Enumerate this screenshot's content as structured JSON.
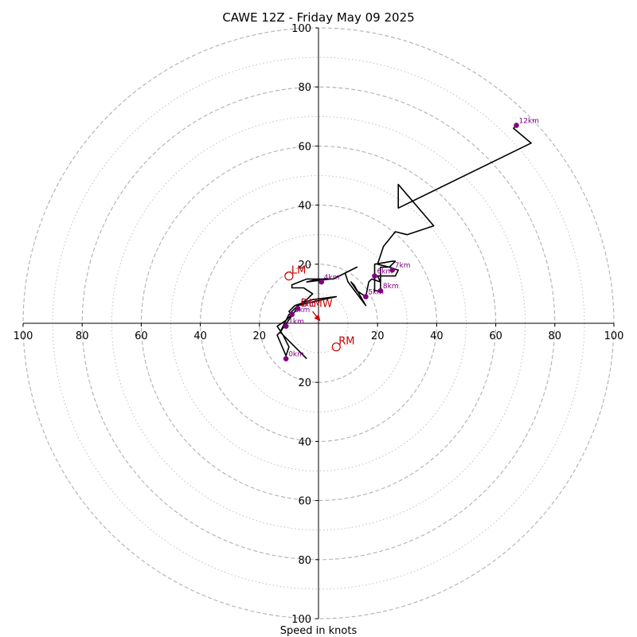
{
  "chart_data": {
    "type": "line",
    "title": "CAWE 12Z - Friday May 09 2025",
    "xlabel": "Speed in knots",
    "ylabel": "",
    "xlim": [
      -100,
      100
    ],
    "ylim": [
      -100,
      100
    ],
    "rings": {
      "major_dashed": [
        20,
        40,
        60,
        80,
        100
      ],
      "minor_dotted": [
        10,
        30,
        50,
        70,
        90
      ]
    },
    "x_tick_labels": [
      "100",
      "80",
      "60",
      "40",
      "20",
      "20",
      "40",
      "60",
      "80",
      "100"
    ],
    "x_tick_values": [
      -100,
      -80,
      -60,
      -40,
      -20,
      20,
      40,
      60,
      80,
      100
    ],
    "y_tick_labels": [
      "100",
      "80",
      "60",
      "40",
      "20",
      "20",
      "40",
      "60",
      "80",
      "100"
    ],
    "y_tick_values": [
      100,
      80,
      60,
      40,
      20,
      -20,
      -40,
      -60,
      -80,
      -100
    ],
    "colors": {
      "hodograph": "#000000",
      "height_markers": "#800080",
      "storm_motion": "#cc0000",
      "grid": "#b0b0b0"
    },
    "series": [
      {
        "points": [
          [
            -4,
            -12
          ],
          [
            -13,
            -3
          ],
          [
            -8,
            4
          ],
          [
            -7,
            6
          ],
          [
            -3,
            7
          ],
          [
            6,
            9
          ],
          [
            -2,
            8
          ],
          [
            -8,
            6
          ],
          [
            -10,
            4
          ],
          [
            -9,
            3
          ],
          [
            -11,
            1
          ],
          [
            -13,
            -3
          ],
          [
            -14,
            -4
          ],
          [
            -11,
            -11
          ],
          [
            -10,
            -8
          ],
          [
            -12,
            -4
          ],
          [
            -14,
            -1
          ],
          [
            -11,
            1
          ],
          [
            -10,
            3
          ],
          [
            -7,
            6
          ],
          [
            -4,
            8
          ],
          [
            -2,
            10
          ],
          [
            -5,
            12
          ],
          [
            -9,
            12
          ],
          [
            -9,
            13
          ],
          [
            -4,
            15
          ],
          [
            2,
            15
          ],
          [
            4,
            15
          ],
          [
            -4,
            14
          ],
          [
            0,
            15
          ],
          [
            5,
            15
          ],
          [
            13,
            19
          ],
          [
            9,
            17
          ],
          [
            10,
            14
          ],
          [
            16,
            6
          ],
          [
            12,
            13
          ],
          [
            11,
            14
          ],
          [
            13,
            11
          ],
          [
            16,
            9
          ],
          [
            17,
            14
          ],
          [
            18,
            15
          ],
          [
            21,
            14
          ],
          [
            20,
            16
          ],
          [
            19,
            16
          ],
          [
            22,
            16
          ],
          [
            26,
            16
          ],
          [
            27,
            18
          ],
          [
            24,
            19
          ],
          [
            21,
            19
          ],
          [
            21,
            11
          ],
          [
            19,
            11
          ],
          [
            19,
            20
          ],
          [
            25,
            21
          ],
          [
            26,
            21
          ],
          [
            24,
            19
          ],
          [
            20,
            20
          ],
          [
            22,
            26
          ],
          [
            26,
            31
          ],
          [
            30,
            30
          ],
          [
            39,
            33
          ],
          [
            27,
            47
          ],
          [
            27,
            39
          ],
          [
            72,
            61
          ],
          [
            66,
            66
          ],
          [
            67,
            67
          ]
        ]
      }
    ],
    "height_markers": [
      {
        "label": "0km",
        "x": -11,
        "y": -12
      },
      {
        "label": "1km",
        "x": -11,
        "y": -1
      },
      {
        "label": "2km",
        "x": -9,
        "y": 3
      },
      {
        "label": "3km",
        "x": -7,
        "y": 5
      },
      {
        "label": "4km",
        "x": 1,
        "y": 14
      },
      {
        "label": "5km",
        "x": 16,
        "y": 9
      },
      {
        "label": "6km",
        "x": 19,
        "y": 16
      },
      {
        "label": "7km",
        "x": 25,
        "y": 18
      },
      {
        "label": "8km",
        "x": 21,
        "y": 11
      },
      {
        "label": "12km",
        "x": 67,
        "y": 67
      }
    ],
    "storm_motion": [
      {
        "label": "LM",
        "x": -10,
        "y": 16
      },
      {
        "label": "RM",
        "x": 6,
        "y": -8
      },
      {
        "label": "MW",
        "x": -2,
        "y": 5
      },
      {
        "label": "DL",
        "x": -2,
        "y": 4
      }
    ]
  }
}
